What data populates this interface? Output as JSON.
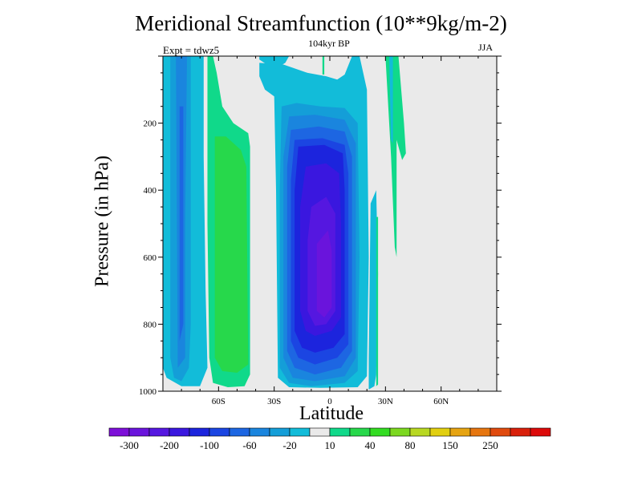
{
  "chart_data": {
    "type": "heatmap",
    "title": "Meridional Streamfunction (10**9kg/m-2)",
    "subtitle": "104kyr BP",
    "left_annotation": "Expt = tdwz5",
    "right_annotation": "JJA",
    "xlabel": "Latitude",
    "ylabel": "Pressure (in hPa)",
    "x_ticks": [
      {
        "value": -60,
        "label": "60S"
      },
      {
        "value": -30,
        "label": "30S"
      },
      {
        "value": 0,
        "label": "0"
      },
      {
        "value": 30,
        "label": "30N"
      },
      {
        "value": 60,
        "label": "60N"
      }
    ],
    "y_ticks": [
      {
        "value": 200,
        "label": "200"
      },
      {
        "value": 400,
        "label": "400"
      },
      {
        "value": 600,
        "label": "600"
      },
      {
        "value": 800,
        "label": "800"
      },
      {
        "value": 1000,
        "label": "1000"
      }
    ],
    "xlim": [
      -90,
      90
    ],
    "ylim": [
      1000,
      0
    ],
    "y_inverted": true,
    "colorbar": {
      "levels": [
        -300,
        -250,
        -200,
        -150,
        -100,
        -80,
        -60,
        -40,
        -20,
        -10,
        10,
        20,
        40,
        60,
        80,
        100,
        150,
        200,
        250,
        300
      ],
      "tick_labels": [
        "-300",
        "-200",
        "-100",
        "-60",
        "-20",
        "10",
        "40",
        "80",
        "150",
        "250"
      ],
      "colors": [
        "#7d0fd8",
        "#6a14dc",
        "#5517e0",
        "#3a17df",
        "#1c24dd",
        "#1b45e2",
        "#1d66e2",
        "#1a85de",
        "#149ed8",
        "#12bcd9",
        "#eaeaea",
        "#10d98a",
        "#27d84b",
        "#33dc22",
        "#7cd820",
        "#b8d822",
        "#e1cf10",
        "#e6a412",
        "#e6760f",
        "#e04a0e",
        "#d9200b",
        "#dc0a0a"
      ]
    },
    "background_value": "near zero (-10 to 10)",
    "features": [
      {
        "name": "Southern Hemisphere positive cell",
        "lat_range": [
          -65,
          -45
        ],
        "pressure_range": [
          250,
          950
        ],
        "max_value": 40
      },
      {
        "name": "Equatorial negative cell",
        "lat_range": [
          -20,
          15
        ],
        "pressure_range": [
          50,
          990
        ],
        "min_value": -300
      },
      {
        "name": "High-latitude southern negative band",
        "lat_range": [
          -88,
          -75
        ],
        "pressure_range": [
          0,
          975
        ],
        "min_value": -100
      }
    ]
  }
}
